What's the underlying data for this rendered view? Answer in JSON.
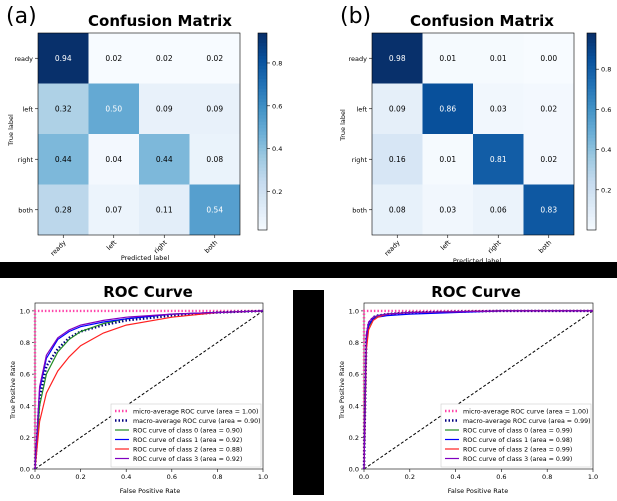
{
  "panels": [
    {
      "letter": "(a)"
    },
    {
      "letter": "(b)"
    }
  ],
  "chart_data": [
    {
      "type": "heatmap",
      "title": "Confusion Matrix",
      "xlabel": "Predicted label",
      "ylabel": "True label",
      "x_categories": [
        "ready",
        "left",
        "right",
        "both"
      ],
      "y_categories": [
        "ready",
        "left",
        "right",
        "both"
      ],
      "values": [
        [
          0.94,
          0.02,
          0.02,
          0.02
        ],
        [
          0.32,
          0.5,
          0.09,
          0.09
        ],
        [
          0.44,
          0.04,
          0.44,
          0.08
        ],
        [
          0.28,
          0.07,
          0.11,
          0.54
        ]
      ],
      "value_labels": [
        [
          "0.94",
          "0.02",
          "0.02",
          "0.02"
        ],
        [
          "0.32",
          "0.50",
          "0.09",
          "0.09"
        ],
        [
          "0.44",
          "0.04",
          "0.44",
          "0.08"
        ],
        [
          "0.28",
          "0.07",
          "0.11",
          "0.54"
        ]
      ],
      "colorbar": {
        "range": [
          0.02,
          0.94
        ],
        "ticks": [
          0.2,
          0.4,
          0.6,
          0.8
        ],
        "tick_labels": [
          "0.2",
          "0.4",
          "0.6",
          "0.8"
        ]
      },
      "colormap": "Blues"
    },
    {
      "type": "heatmap",
      "title": "Confusion Matrix",
      "xlabel": "Predicted label",
      "ylabel": "True label",
      "x_categories": [
        "ready",
        "left",
        "right",
        "both"
      ],
      "y_categories": [
        "ready",
        "left",
        "right",
        "both"
      ],
      "values": [
        [
          0.98,
          0.01,
          0.01,
          0.0
        ],
        [
          0.09,
          0.86,
          0.03,
          0.02
        ],
        [
          0.16,
          0.01,
          0.81,
          0.02
        ],
        [
          0.08,
          0.03,
          0.06,
          0.83
        ]
      ],
      "value_labels": [
        [
          "0.98",
          "0.01",
          "0.01",
          "0.00"
        ],
        [
          "0.09",
          "0.86",
          "0.03",
          "0.02"
        ],
        [
          "0.16",
          "0.01",
          "0.81",
          "0.02"
        ],
        [
          "0.08",
          "0.03",
          "0.06",
          "0.83"
        ]
      ],
      "colorbar": {
        "range": [
          0.0,
          0.98
        ],
        "ticks": [
          0.2,
          0.4,
          0.6,
          0.8
        ],
        "tick_labels": [
          "0.2",
          "0.4",
          "0.6",
          "0.8"
        ]
      },
      "colormap": "Blues"
    },
    {
      "type": "line",
      "title": "ROC Curve",
      "xlabel": "False Positive Rate",
      "ylabel": "True Positive Rate",
      "xlim": [
        0.0,
        1.0
      ],
      "ylim": [
        0.0,
        1.05
      ],
      "x_ticks": [
        "0.0",
        "0.2",
        "0.4",
        "0.6",
        "0.8",
        "1.0"
      ],
      "y_ticks": [
        "0.0",
        "0.2",
        "0.4",
        "0.6",
        "0.8",
        "1.0"
      ],
      "legend_position": "lower-right",
      "series": [
        {
          "name": "micro-average ROC curve (area = 1.00)",
          "color": "#ff44aa",
          "style": "dotted",
          "x": [
            0.0,
            0.0,
            0.2,
            0.4,
            0.6,
            0.8,
            1.0
          ],
          "y": [
            0.0,
            1.0,
            1.0,
            1.0,
            1.0,
            1.0,
            1.0
          ]
        },
        {
          "name": "macro-average ROC curve (area = 0.90)",
          "color": "#000080",
          "style": "dotted",
          "x": [
            0.0,
            0.02,
            0.05,
            0.1,
            0.15,
            0.2,
            0.3,
            0.4,
            0.6,
            0.8,
            1.0
          ],
          "y": [
            0.0,
            0.45,
            0.65,
            0.76,
            0.83,
            0.87,
            0.91,
            0.94,
            0.97,
            0.99,
            1.0
          ]
        },
        {
          "name": "ROC curve of class 0 (area = 0.90)",
          "color": "#228b22",
          "style": "solid",
          "x": [
            0.0,
            0.02,
            0.05,
            0.1,
            0.15,
            0.2,
            0.3,
            0.4,
            0.6,
            0.8,
            1.0
          ],
          "y": [
            0.0,
            0.4,
            0.6,
            0.74,
            0.82,
            0.87,
            0.92,
            0.95,
            0.98,
            0.99,
            1.0
          ]
        },
        {
          "name": "ROC curve of class 1 (area = 0.92)",
          "color": "#0000ff",
          "style": "solid",
          "x": [
            0.0,
            0.02,
            0.05,
            0.1,
            0.15,
            0.2,
            0.3,
            0.4,
            0.6,
            0.8,
            1.0
          ],
          "y": [
            0.0,
            0.5,
            0.7,
            0.82,
            0.87,
            0.9,
            0.93,
            0.95,
            0.98,
            0.99,
            1.0
          ]
        },
        {
          "name": "ROC curve of class 2 (area = 0.88)",
          "color": "#ff2020",
          "style": "solid",
          "x": [
            0.0,
            0.02,
            0.05,
            0.1,
            0.15,
            0.2,
            0.3,
            0.4,
            0.6,
            0.8,
            1.0
          ],
          "y": [
            0.0,
            0.3,
            0.48,
            0.62,
            0.71,
            0.78,
            0.86,
            0.91,
            0.96,
            0.99,
            1.0
          ]
        },
        {
          "name": "ROC curve of class 3 (area = 0.92)",
          "color": "#8000c0",
          "style": "solid",
          "x": [
            0.0,
            0.02,
            0.05,
            0.1,
            0.15,
            0.2,
            0.3,
            0.4,
            0.6,
            0.8,
            1.0
          ],
          "y": [
            0.0,
            0.52,
            0.72,
            0.83,
            0.88,
            0.91,
            0.94,
            0.96,
            0.98,
            0.99,
            1.0
          ]
        }
      ],
      "diagonal": {
        "color": "#000000",
        "style": "dashed"
      }
    },
    {
      "type": "line",
      "title": "ROC Curve",
      "xlabel": "False Positive Rate",
      "ylabel": "True Positive Rate",
      "xlim": [
        0.0,
        1.0
      ],
      "ylim": [
        0.0,
        1.05
      ],
      "x_ticks": [
        "0.0",
        "0.2",
        "0.4",
        "0.6",
        "0.8",
        "1.0"
      ],
      "y_ticks": [
        "0.0",
        "0.2",
        "0.4",
        "0.6",
        "0.8",
        "1.0"
      ],
      "legend_position": "lower-right",
      "series": [
        {
          "name": "micro-average ROC curve (area = 1.00)",
          "color": "#ff44aa",
          "style": "dotted",
          "x": [
            0.0,
            0.0,
            0.2,
            0.4,
            0.6,
            0.8,
            1.0
          ],
          "y": [
            0.0,
            1.0,
            1.0,
            1.0,
            1.0,
            1.0,
            1.0
          ]
        },
        {
          "name": "macro-average ROC curve (area = 0.99)",
          "color": "#000080",
          "style": "dotted",
          "x": [
            0.0,
            0.01,
            0.02,
            0.04,
            0.06,
            0.1,
            0.2,
            0.4,
            0.6,
            0.8,
            1.0
          ],
          "y": [
            0.0,
            0.82,
            0.92,
            0.96,
            0.97,
            0.98,
            0.99,
            0.995,
            1.0,
            1.0,
            1.0
          ]
        },
        {
          "name": "ROC curve of class 0 (area = 0.99)",
          "color": "#228b22",
          "style": "solid",
          "x": [
            0.0,
            0.01,
            0.02,
            0.04,
            0.06,
            0.1,
            0.2,
            0.4,
            0.6,
            0.8,
            1.0
          ],
          "y": [
            0.0,
            0.78,
            0.9,
            0.95,
            0.97,
            0.98,
            0.99,
            0.995,
            1.0,
            1.0,
            1.0
          ]
        },
        {
          "name": "ROC curve of class 1 (area = 0.98)",
          "color": "#0000ff",
          "style": "solid",
          "x": [
            0.0,
            0.01,
            0.02,
            0.04,
            0.06,
            0.1,
            0.2,
            0.4,
            0.6,
            0.8,
            1.0
          ],
          "y": [
            0.0,
            0.8,
            0.91,
            0.95,
            0.96,
            0.97,
            0.98,
            0.99,
            1.0,
            1.0,
            1.0
          ]
        },
        {
          "name": "ROC curve of class 2 (area = 0.99)",
          "color": "#ff2020",
          "style": "solid",
          "x": [
            0.0,
            0.01,
            0.02,
            0.04,
            0.06,
            0.1,
            0.2,
            0.4,
            0.6,
            0.8,
            1.0
          ],
          "y": [
            0.0,
            0.75,
            0.88,
            0.94,
            0.96,
            0.98,
            0.99,
            0.995,
            1.0,
            1.0,
            1.0
          ]
        },
        {
          "name": "ROC curve of class 3 (area = 0.99)",
          "color": "#8000c0",
          "style": "solid",
          "x": [
            0.0,
            0.01,
            0.02,
            0.04,
            0.06,
            0.1,
            0.2,
            0.4,
            0.6,
            0.8,
            1.0
          ],
          "y": [
            0.0,
            0.85,
            0.93,
            0.96,
            0.97,
            0.98,
            0.99,
            0.995,
            1.0,
            1.0,
            1.0
          ]
        }
      ],
      "diagonal": {
        "color": "#000000",
        "style": "dashed"
      }
    }
  ]
}
